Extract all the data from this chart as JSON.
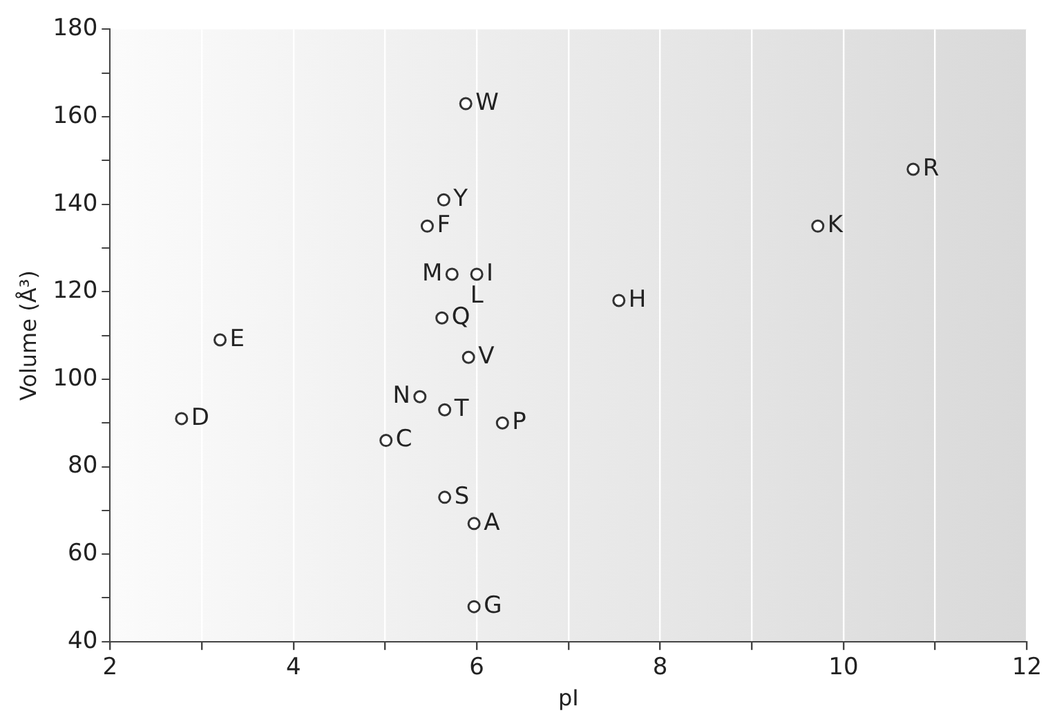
{
  "chart_data": {
    "type": "scatter",
    "xlabel": "pI",
    "ylabel": "Volume (Å³)",
    "x": [
      5.88,
      5.64,
      5.46,
      5.73,
      6.0,
      5.62,
      3.2,
      5.91,
      2.78,
      5.38,
      5.65,
      6.28,
      5.01,
      5.65,
      5.97,
      5.97,
      7.55,
      9.72,
      10.76
    ],
    "series": [
      {
        "color": "#333333",
        "values": [
          163,
          141,
          135,
          124,
          124,
          114,
          109,
          105,
          91,
          96,
          93,
          90,
          86,
          73,
          67,
          48,
          118,
          135,
          148
        ]
      }
    ],
    "annotations": [
      {
        "text": "W",
        "x": 5.88,
        "y": 163
      },
      {
        "text": "Y",
        "x": 5.64,
        "y": 141
      },
      {
        "text": "F",
        "x": 5.46,
        "y": 135
      },
      {
        "text": "M",
        "x": 5.73,
        "y": 124
      },
      {
        "text": "I",
        "x": 6.0,
        "y": 124
      },
      {
        "text": "L",
        "x": 6.0,
        "y": 124
      },
      {
        "text": "Q",
        "x": 5.62,
        "y": 114
      },
      {
        "text": "E",
        "x": 3.2,
        "y": 109
      },
      {
        "text": "V",
        "x": 5.91,
        "y": 105
      },
      {
        "text": "D",
        "x": 2.78,
        "y": 91
      },
      {
        "text": "N",
        "x": 5.38,
        "y": 96
      },
      {
        "text": "T",
        "x": 5.65,
        "y": 93
      },
      {
        "text": "P",
        "x": 6.28,
        "y": 90
      },
      {
        "text": "C",
        "x": 5.01,
        "y": 86
      },
      {
        "text": "S",
        "x": 5.65,
        "y": 73
      },
      {
        "text": "A",
        "x": 5.97,
        "y": 67
      },
      {
        "text": "G",
        "x": 5.97,
        "y": 48
      },
      {
        "text": "H",
        "x": 7.55,
        "y": 118
      },
      {
        "text": "K",
        "x": 9.72,
        "y": 135
      },
      {
        "text": "R",
        "x": 10.76,
        "y": 148
      }
    ],
    "xlim": [
      2,
      12
    ],
    "xticks": [
      2,
      {
        "value": 3,
        "label": null
      },
      4,
      {
        "value": 5,
        "label": null
      },
      6,
      {
        "value": 7,
        "label": null
      },
      8,
      {
        "value": 9,
        "label": null
      },
      10,
      {
        "value": 11,
        "label": null
      },
      12
    ],
    "ylim": [
      40,
      180
    ],
    "yticks": [
      40,
      {
        "value": 50,
        "label": null
      },
      60,
      {
        "value": 70,
        "label": null
      },
      80,
      {
        "value": 90,
        "label": null
      },
      100,
      {
        "value": 110,
        "label": null
      },
      120,
      {
        "value": 130,
        "label": null
      },
      140,
      {
        "value": 150,
        "label": null
      },
      160,
      {
        "value": 170,
        "label": null
      },
      180
    ],
    "grid": "x",
    "marker": "circle"
  }
}
